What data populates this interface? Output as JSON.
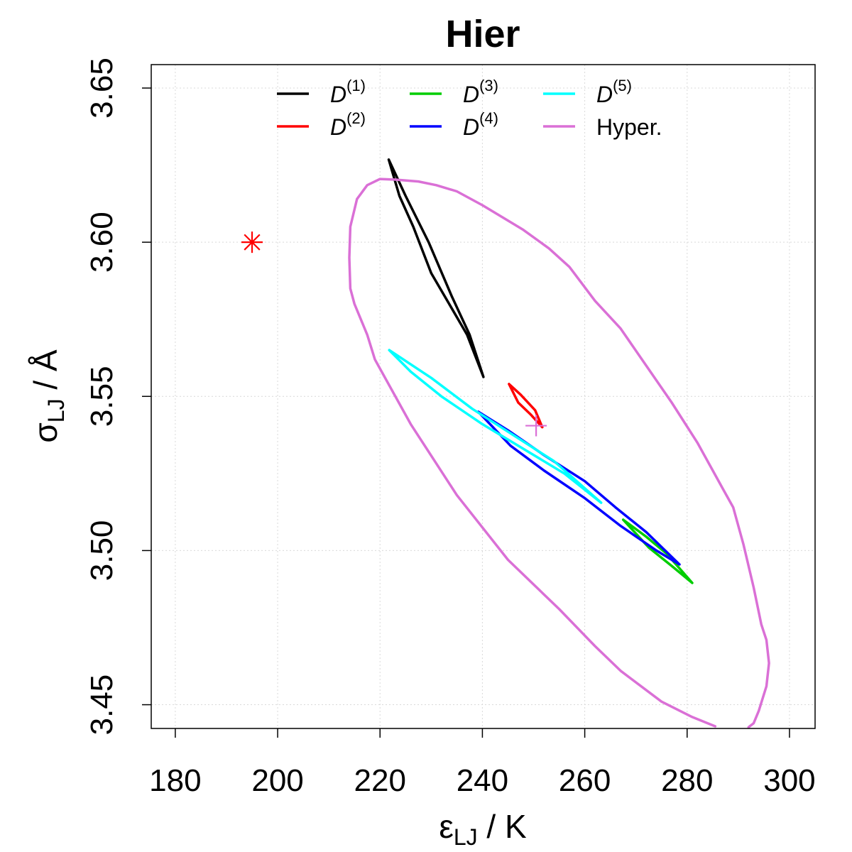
{
  "chart_data": {
    "type": "line",
    "title": "Hier",
    "xlabel": {
      "base": "ε",
      "sub": "LJ",
      "unit": " / K"
    },
    "ylabel": {
      "base": "σ",
      "sub": "LJ",
      "unit": " / Å"
    },
    "xlim": [
      175.3,
      305.0
    ],
    "ylim": [
      3.4423,
      3.6576
    ],
    "x_ticks": [
      180,
      200,
      220,
      240,
      260,
      280,
      300
    ],
    "x_tick_labels": [
      "180",
      "200",
      "220",
      "240",
      "260",
      "280",
      "300"
    ],
    "y_ticks": [
      3.45,
      3.5,
      3.55,
      3.6,
      3.65
    ],
    "y_tick_labels": [
      "3.45",
      "3.50",
      "3.55",
      "3.60",
      "3.65"
    ],
    "grid": true,
    "legend_position": "top",
    "series": [
      {
        "name": "D(1)",
        "label_base": "D",
        "label_sup": "(1)",
        "color": "#000000",
        "points": [
          [
            221.7,
            3.6268
          ],
          [
            225.0,
            3.615
          ],
          [
            229.5,
            3.6
          ],
          [
            234.0,
            3.5825
          ],
          [
            237.5,
            3.57
          ],
          [
            240.2,
            3.5563
          ],
          [
            237.0,
            3.57
          ],
          [
            233.5,
            3.58
          ],
          [
            230.0,
            3.59
          ],
          [
            226.5,
            3.605
          ],
          [
            223.8,
            3.615
          ],
          [
            221.7,
            3.6268
          ]
        ]
      },
      {
        "name": "D(2)",
        "label_base": "D",
        "label_sup": "(2)",
        "color": "#ff0000",
        "points": [
          [
            245.2,
            3.554
          ],
          [
            247.5,
            3.5505
          ],
          [
            250.3,
            3.5455
          ],
          [
            251.7,
            3.54
          ],
          [
            249.5,
            3.544
          ],
          [
            247.0,
            3.548
          ],
          [
            245.2,
            3.554
          ]
        ]
      },
      {
        "name": "D(3)",
        "label_base": "D",
        "label_sup": "(3)",
        "color": "#00cd00",
        "points": [
          [
            267.5,
            3.51
          ],
          [
            272.0,
            3.5045
          ],
          [
            276.0,
            3.499
          ],
          [
            281.0,
            3.4895
          ],
          [
            277.0,
            3.495
          ],
          [
            272.5,
            3.501
          ],
          [
            267.5,
            3.51
          ]
        ]
      },
      {
        "name": "D(4)",
        "label_base": "D",
        "label_sup": "(4)",
        "color": "#0000ff",
        "points": [
          [
            239.2,
            3.545
          ],
          [
            245.0,
            3.539
          ],
          [
            252.0,
            3.531
          ],
          [
            260.0,
            3.5225
          ],
          [
            266.0,
            3.514
          ],
          [
            272.0,
            3.506
          ],
          [
            278.5,
            3.4955
          ],
          [
            274.0,
            3.5
          ],
          [
            267.0,
            3.508
          ],
          [
            260.0,
            3.517
          ],
          [
            252.0,
            3.526
          ],
          [
            245.5,
            3.534
          ],
          [
            239.2,
            3.545
          ]
        ]
      },
      {
        "name": "D(5)",
        "label_base": "D",
        "label_sup": "(5)",
        "color": "#00ffff",
        "points": [
          [
            221.8,
            3.565
          ],
          [
            230.0,
            3.556
          ],
          [
            238.0,
            3.546
          ],
          [
            246.0,
            3.5375
          ],
          [
            254.0,
            3.529
          ],
          [
            263.2,
            3.5155
          ],
          [
            256.0,
            3.525
          ],
          [
            248.0,
            3.533
          ],
          [
            240.0,
            3.541
          ],
          [
            232.0,
            3.55
          ],
          [
            226.0,
            3.558
          ],
          [
            221.8,
            3.565
          ]
        ]
      },
      {
        "name": "Hyper.",
        "label_base": "Hyper.",
        "label_sup": "",
        "color": "#da70d6",
        "points": [
          [
            285.5,
            3.443
          ],
          [
            281.0,
            3.446
          ],
          [
            275.0,
            3.451
          ],
          [
            267.0,
            3.461
          ],
          [
            262.0,
            3.469
          ],
          [
            255.0,
            3.481
          ],
          [
            245.0,
            3.497
          ],
          [
            235.0,
            3.518
          ],
          [
            226.0,
            3.541
          ],
          [
            219.0,
            3.562
          ],
          [
            217.5,
            3.57
          ],
          [
            215.0,
            3.58
          ],
          [
            214.2,
            3.585
          ],
          [
            214.0,
            3.595
          ],
          [
            214.2,
            3.605
          ],
          [
            215.5,
            3.614
          ],
          [
            217.5,
            3.6185
          ],
          [
            220.0,
            3.6205
          ],
          [
            223.0,
            3.6203
          ],
          [
            227.5,
            3.6197
          ],
          [
            231.0,
            3.6185
          ],
          [
            235.0,
            3.6165
          ],
          [
            240.0,
            3.612
          ],
          [
            244.0,
            3.608
          ],
          [
            248.0,
            3.604
          ],
          [
            253.0,
            3.598
          ],
          [
            257.0,
            3.592
          ],
          [
            262.0,
            3.581
          ],
          [
            267.0,
            3.572
          ],
          [
            272.0,
            3.56
          ],
          [
            277.0,
            3.548
          ],
          [
            282.0,
            3.535
          ],
          [
            287.0,
            3.52
          ],
          [
            289.0,
            3.514
          ],
          [
            291.0,
            3.502
          ],
          [
            293.0,
            3.488
          ],
          [
            294.5,
            3.476
          ],
          [
            295.5,
            3.471
          ],
          [
            296.0,
            3.4635
          ],
          [
            295.5,
            3.456
          ],
          [
            294.0,
            3.448
          ],
          [
            293.0,
            3.444
          ],
          [
            292.0,
            3.4427
          ]
        ]
      }
    ],
    "markers": [
      {
        "name": "asterisk",
        "x": 195.0,
        "y": 3.6,
        "color": "#ff0000",
        "symbol": "*"
      },
      {
        "name": "plus",
        "x": 250.5,
        "y": 3.5405,
        "color": "#da70d6",
        "symbol": "+"
      }
    ]
  }
}
